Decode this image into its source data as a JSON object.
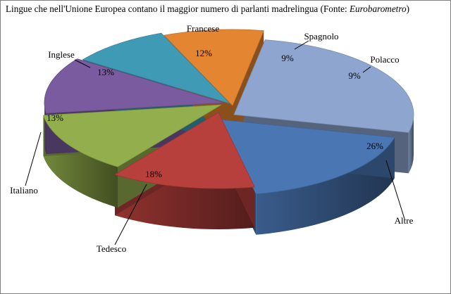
{
  "title": {
    "main": "Lingue che nell'Unione Europea contano il maggior numero di parlanti madrelingua (Fonte: ",
    "source": "Eurobarometro",
    "close": ")"
  },
  "chart_data": {
    "type": "pie",
    "style": "3d-exploded",
    "title": "Lingue che nell'Unione Europea contano il maggior numero di parlanti madrelingua (Fonte: Eurobarometro)",
    "legend": "none",
    "slices": [
      {
        "label": "Altre",
        "value": 26,
        "display": "26%",
        "color": "#8ea5cf"
      },
      {
        "label": "Tedesco",
        "value": 18,
        "display": "18%",
        "color": "#4a76b4"
      },
      {
        "label": "Italiano",
        "value": 13,
        "display": "13%",
        "color": "#b8403c"
      },
      {
        "label": "Inglese",
        "value": 13,
        "display": "13%",
        "color": "#93ae4c"
      },
      {
        "label": "Francese",
        "value": 12,
        "display": "12%",
        "color": "#7a5b9f"
      },
      {
        "label": "Spagnolo",
        "value": 9,
        "display": "9%",
        "color": "#3f9bb5"
      },
      {
        "label": "Polacco",
        "value": 9,
        "display": "9%",
        "color": "#e48532"
      }
    ]
  }
}
